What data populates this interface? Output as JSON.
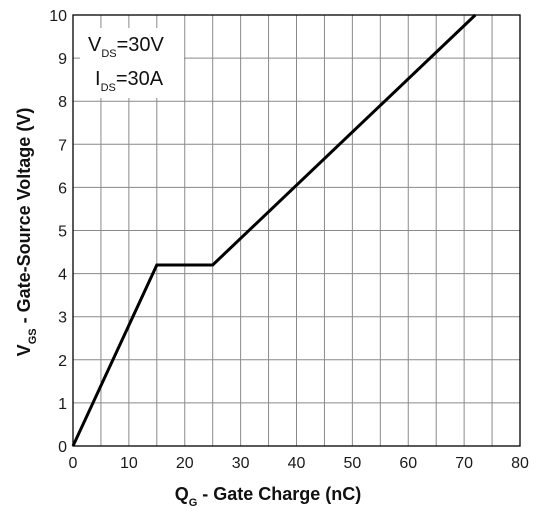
{
  "chart_data": {
    "type": "line",
    "xlabel": {
      "main": "Q",
      "sub": "G",
      "rest": " - Gate Charge (nC)"
    },
    "ylabel": {
      "main": "V",
      "sub": "GS",
      "rest": " - Gate-Source Voltage (V)"
    },
    "xlim": [
      0,
      80
    ],
    "ylim": [
      0,
      10
    ],
    "x_ticks": [
      0,
      10,
      20,
      30,
      40,
      50,
      60,
      70,
      80
    ],
    "y_ticks": [
      0,
      1,
      2,
      3,
      4,
      5,
      6,
      7,
      8,
      9,
      10
    ],
    "grid": true,
    "grid_minor_x_step": 5,
    "line_color": "#000000",
    "grid_color": "#8a8a8a",
    "series": [
      {
        "x": [
          0,
          15,
          25,
          72
        ],
        "y": [
          0,
          4.2,
          4.2,
          10
        ]
      }
    ],
    "annotations": [
      {
        "main": "V",
        "sub": "DS",
        "rest": "=30V"
      },
      {
        "main": "I",
        "sub": "DS",
        "rest": "=30A"
      }
    ]
  }
}
